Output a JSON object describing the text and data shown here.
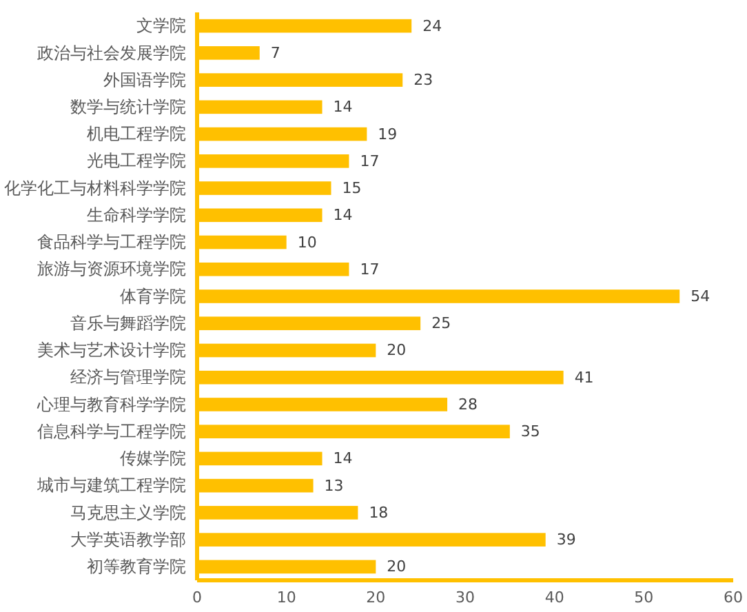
{
  "chart_data": {
    "type": "bar",
    "orientation": "horizontal",
    "categories": [
      "文学院",
      "政治与社会发展学院",
      "外国语学院",
      "数学与统计学院",
      "机电工程学院",
      "光电工程学院",
      "化学化工与材料科学学院",
      "生命科学学院",
      "食品科学与工程学院",
      "旅游与资源环境学院",
      "体育学院",
      "音乐与舞蹈学院",
      "美术与艺术设计学院",
      "经济与管理学院",
      "心理与教育科学学院",
      "信息科学与工程学院",
      "传媒学院",
      "城市与建筑工程学院",
      "马克思主义学院",
      "大学英语教学部",
      "初等教育学院"
    ],
    "values": [
      24,
      7,
      23,
      14,
      19,
      17,
      15,
      14,
      10,
      17,
      54,
      25,
      20,
      41,
      28,
      35,
      14,
      13,
      18,
      39,
      20
    ],
    "color": "#ffc000",
    "xlim": [
      0,
      60
    ],
    "xticks": [
      0,
      10,
      20,
      30,
      40,
      50,
      60
    ],
    "data_labels": true
  }
}
